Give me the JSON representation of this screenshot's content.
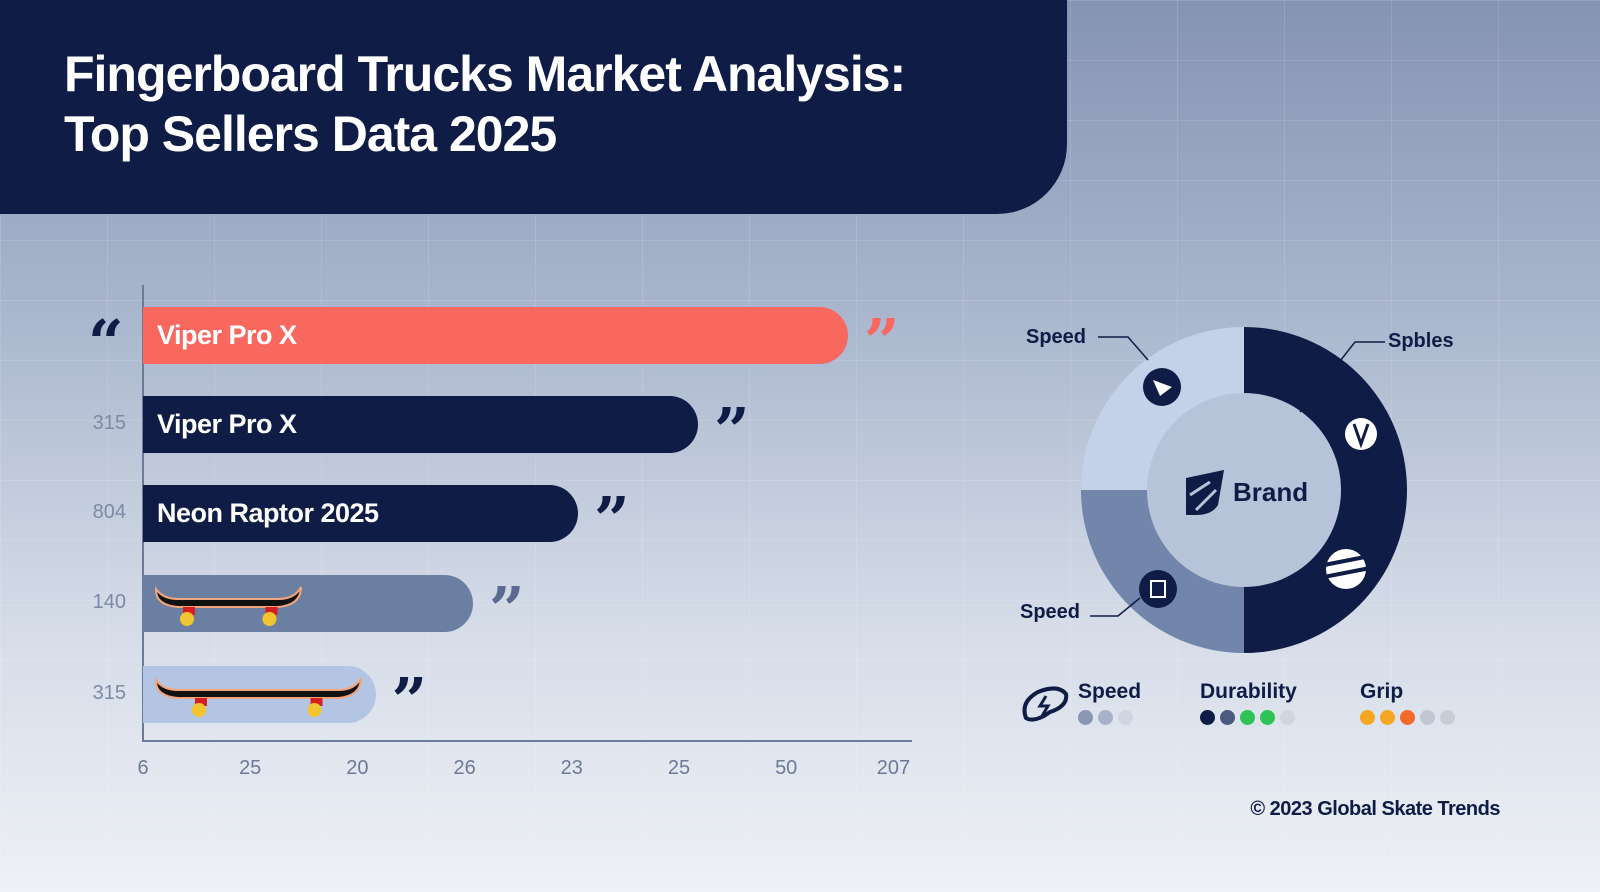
{
  "title_line1": "Fingerboard Trucks Market Analysis:",
  "title_line2": "Top Sellers Data 2025",
  "chart_data": [
    {
      "type": "bar",
      "orientation": "horizontal",
      "x_tick_labels": [
        "6",
        "25",
        "20",
        "26",
        "23",
        "25",
        "50",
        "207"
      ],
      "bars": [
        {
          "label": "Viper Pro X",
          "y_label": "",
          "length_pct": 94,
          "color": "#f8685e",
          "quote_color": "#f8685e"
        },
        {
          "label": "Viper Pro X",
          "y_label": "315",
          "length_pct": 74,
          "color": "#0f1c45",
          "quote_color": "#0f1c45"
        },
        {
          "label": "Neon Raptor 2025",
          "y_label": "804",
          "length_pct": 58,
          "color": "#0f1c45",
          "quote_color": "#0f1c45"
        },
        {
          "label": "",
          "y_label": "140",
          "length_pct": 44,
          "color": "#6b7fa3",
          "quote_color": "#5a6a90",
          "icon": "skateboard-icon"
        },
        {
          "label": "",
          "y_label": "315",
          "length_pct": 31,
          "color": "#b3c5e2",
          "quote_color": "#0f1c45",
          "icon": "skateboard-icon"
        }
      ]
    },
    {
      "type": "pie",
      "donut": true,
      "center_label": "Brand",
      "slices": [
        {
          "value": 50,
          "color": "#0f1c45",
          "callout": "Spbles"
        },
        {
          "value": 25,
          "color": "#7286ab",
          "callout": "Speed"
        },
        {
          "value": 25,
          "color": "#c3d1e9",
          "callout": "Speed"
        }
      ]
    }
  ],
  "legend": [
    {
      "label": "Speed",
      "dots": [
        "#8a97b3",
        "#a7b1c8",
        "#cfd5e0"
      ]
    },
    {
      "label": "Durability",
      "dots": [
        "#0f1c45",
        "#4a5a80",
        "#2fc257",
        "#2fc257",
        "#d0d6e0"
      ]
    },
    {
      "label": "Grip",
      "dots": [
        "#f5a623",
        "#f5a623",
        "#f26b2a",
        "#c0c6d2",
        "#c8cdd8"
      ]
    }
  ],
  "copyright": "© 2023 Global Skate Trends"
}
